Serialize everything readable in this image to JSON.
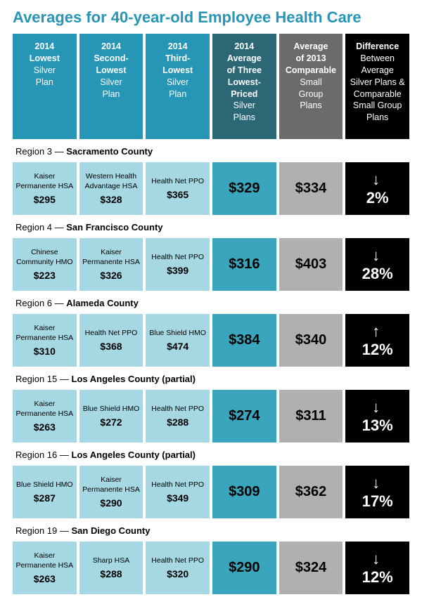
{
  "title": "Averages for 40-year-old Employee Health Care",
  "colors": {
    "h0": "#2795b5",
    "h1": "#2795b5",
    "h2": "#2795b5",
    "h3": "#2c6776",
    "h4": "#6b6b6b",
    "h5": "#000000",
    "plan_bg": "#a6d8e3",
    "avg_bg": "#3aa6bd",
    "comp_bg": "#b0b0b0",
    "diff_bg": "#000000"
  },
  "headers": [
    {
      "bold": "2014\nLowest",
      "light": "Silver\nPlan"
    },
    {
      "bold": "2014\nSecond-\nLowest",
      "light": "Silver\nPlan"
    },
    {
      "bold": "2014\nThird-\nLowest",
      "light": "Silver\nPlan"
    },
    {
      "bold": "2014\nAverage\nof Three\nLowest-\nPriced",
      "light": "Silver\nPlans"
    },
    {
      "bold": "Average\nof 2013\nComparable",
      "light": "Small\nGroup\nPlans"
    },
    {
      "bold": "Difference",
      "light": "Between\nAverage\nSilver Plans &\nComparable\nSmall Group\nPlans"
    }
  ],
  "regions": [
    {
      "label_prefix": "Region 3 — ",
      "label_name": "Sacramento County",
      "plans": [
        {
          "name": "Kaiser Permanente HSA",
          "price": "$295"
        },
        {
          "name": "Western Health Advantage HSA",
          "price": "$328"
        },
        {
          "name": "Health Net PPO",
          "price": "$365"
        }
      ],
      "avg": "$329",
      "comp": "$334",
      "diff": {
        "dir": "down",
        "pct": "2%"
      }
    },
    {
      "label_prefix": "Region 4 — ",
      "label_name": "San Francisco County",
      "plans": [
        {
          "name": "Chinese Community HMO",
          "price": "$223"
        },
        {
          "name": "Kaiser Permanente HSA",
          "price": "$326"
        },
        {
          "name": "Health Net PPO",
          "price": "$399"
        }
      ],
      "avg": "$316",
      "comp": "$403",
      "diff": {
        "dir": "down",
        "pct": "28%"
      }
    },
    {
      "label_prefix": "Region 6 — ",
      "label_name": "Alameda County",
      "plans": [
        {
          "name": "Kaiser Permanente HSA",
          "price": "$310"
        },
        {
          "name": "Health Net PPO",
          "price": "$368"
        },
        {
          "name": "Blue Shield HMO",
          "price": "$474"
        }
      ],
      "avg": "$384",
      "comp": "$340",
      "diff": {
        "dir": "up",
        "pct": "12%"
      }
    },
    {
      "label_prefix": "Region 15 — ",
      "label_name": "Los Angeles County (partial)",
      "plans": [
        {
          "name": "Kaiser Permanente HSA",
          "price": "$263"
        },
        {
          "name": "Blue Shield HMO",
          "price": "$272"
        },
        {
          "name": "Health Net PPO",
          "price": "$288"
        }
      ],
      "avg": "$274",
      "comp": "$311",
      "diff": {
        "dir": "down",
        "pct": "13%"
      }
    },
    {
      "label_prefix": "Region 16 — ",
      "label_name": "Los Angeles County (partial)",
      "plans": [
        {
          "name": "Blue Shield HMO",
          "price": "$287"
        },
        {
          "name": "Kaiser Permanente HSA",
          "price": "$290"
        },
        {
          "name": "Health Net PPO",
          "price": "$349"
        }
      ],
      "avg": "$309",
      "comp": "$362",
      "diff": {
        "dir": "down",
        "pct": "17%"
      }
    },
    {
      "label_prefix": "Region 19 — ",
      "label_name": "San Diego County",
      "plans": [
        {
          "name": "Kaiser Permanente HSA",
          "price": "$263"
        },
        {
          "name": "Sharp HSA",
          "price": "$288"
        },
        {
          "name": "Health Net PPO",
          "price": "$320"
        }
      ],
      "avg": "$290",
      "comp": "$324",
      "diff": {
        "dir": "down",
        "pct": "12%"
      }
    }
  ]
}
